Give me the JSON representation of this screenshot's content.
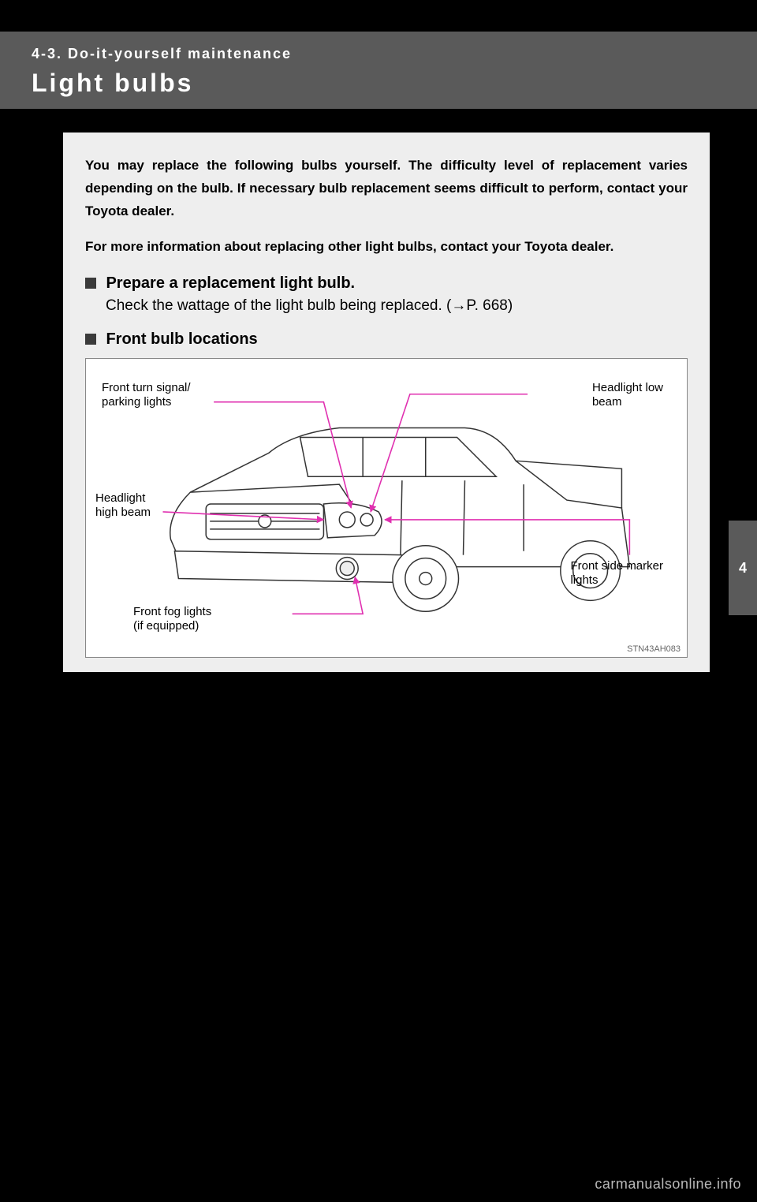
{
  "header": {
    "section_label": "4-3. Do-it-yourself maintenance",
    "title": "Light bulbs"
  },
  "intro": {
    "p1": "You may replace the following bulbs yourself. The difficulty level of replacement varies depending on the bulb. If necessary bulb replacement seems difficult to perform, contact your Toyota dealer.",
    "p2": "For more information about replacing other light bulbs, contact your Toyota dealer."
  },
  "sections": {
    "prepare": {
      "title": "Prepare a replacement light bulb.",
      "body_prefix": "Check the wattage of the light bulb being replaced. (",
      "body_ref": "P. 668)",
      "arrow": "→"
    },
    "front_loc": {
      "title": "Front bulb locations"
    }
  },
  "diagram": {
    "code": "STN43AH083",
    "callouts": {
      "turn_signal": "Front turn signal/\nparking lights",
      "low_beam": "Headlight low\nbeam",
      "high_beam": "Headlight\nhigh beam",
      "side_marker": "Front side marker\nlights",
      "fog": "Front fog lights\n(if equipped)"
    },
    "line_color": "#e030b0",
    "truck_stroke": "#333333",
    "truck_fill": "#ffffff",
    "bg": "#ffffff"
  },
  "side_tab": {
    "num": "4"
  },
  "watermark": "carmanualsonline.info"
}
